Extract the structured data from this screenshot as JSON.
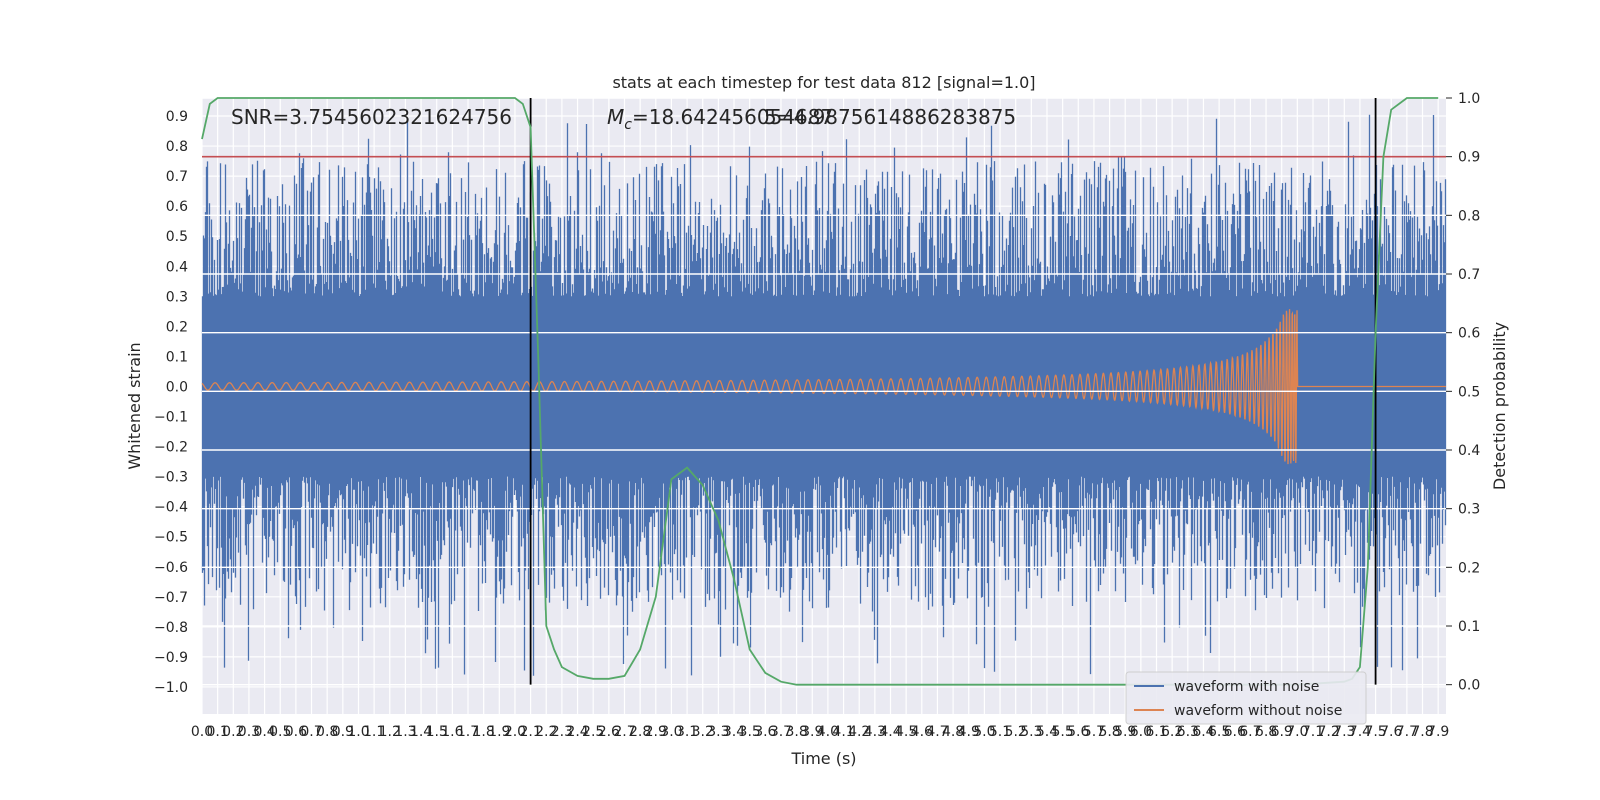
{
  "chart_data": {
    "type": "line",
    "title": "stats at each timestep for test data 812 [signal=1.0]",
    "xlabel": "Time (s)",
    "ylabel_left": "Whitened strain",
    "ylabel_right": "Detection probability",
    "annotations": {
      "snr": "SNR=3.7545602321624756",
      "mc_symbol": "M",
      "mc_sub": "c",
      "mc_value": "=18.642456054687",
      "mc_overlap": "5=4.9875614886283875"
    },
    "xlim": [
      0,
      7.95
    ],
    "ylim_left": [
      -1.09,
      0.96
    ],
    "ylim_right": [
      -0.05,
      1.0
    ],
    "x_ticks": [
      0.0,
      0.1,
      0.2,
      0.3,
      0.4,
      0.5,
      0.6,
      0.7,
      0.8,
      0.9,
      1.0,
      1.1,
      1.2,
      1.3,
      1.4,
      1.5,
      1.6,
      1.7,
      1.8,
      1.9,
      2.0,
      2.1,
      2.2,
      2.3,
      2.4,
      2.5,
      2.6,
      2.7,
      2.8,
      2.9,
      3.0,
      3.1,
      3.2,
      3.3,
      3.4,
      3.5,
      3.6,
      3.7,
      3.8,
      3.9,
      4.0,
      4.1,
      4.2,
      4.3,
      4.4,
      4.5,
      4.6,
      4.7,
      4.8,
      4.9,
      5.0,
      5.1,
      5.2,
      5.3,
      5.4,
      5.5,
      5.6,
      5.7,
      5.8,
      5.9,
      6.0,
      6.1,
      6.2,
      6.3,
      6.4,
      6.5,
      6.6,
      6.7,
      6.8,
      6.9,
      7.0,
      7.1,
      7.2,
      7.3,
      7.4,
      7.5,
      7.6,
      7.7,
      7.8,
      7.9
    ],
    "y_ticks_left": [
      0.9,
      0.8,
      0.7,
      0.6,
      0.5,
      0.4,
      0.3,
      0.2,
      0.1,
      0.0,
      -0.1,
      -0.2,
      -0.3,
      -0.4,
      -0.5,
      -0.6,
      -0.7,
      -0.8,
      -0.9,
      -1.0
    ],
    "y_ticks_right": [
      1.0,
      0.9,
      0.8,
      0.7,
      0.6,
      0.5,
      0.4,
      0.3,
      0.2,
      0.1,
      0.0
    ],
    "threshold_right": 0.9,
    "vertical_lines_x": [
      2.1,
      7.5
    ],
    "chirp_merger_x": 7.0,
    "series": [
      {
        "name": "waveform with noise",
        "color": "#4c72b0"
      },
      {
        "name": "waveform without noise",
        "color": "#dd8452"
      },
      {
        "name": "",
        "color": "#55a868",
        "x": [
          0,
          0.05,
          0.1,
          0.5,
          1.0,
          1.5,
          1.9,
          2.0,
          2.05,
          2.1,
          2.15,
          2.2,
          2.25,
          2.3,
          2.4,
          2.5,
          2.6,
          2.7,
          2.8,
          2.9,
          3.0,
          3.1,
          3.2,
          3.3,
          3.4,
          3.5,
          3.6,
          3.7,
          3.8,
          4.0,
          4.5,
          5.0,
          5.5,
          6.0,
          6.5,
          7.0,
          7.3,
          7.35,
          7.4,
          7.45,
          7.5,
          7.55,
          7.6,
          7.7,
          7.8,
          7.9
        ],
        "values": [
          0.93,
          0.99,
          1.0,
          1.0,
          1.0,
          1.0,
          1.0,
          1.0,
          0.99,
          0.95,
          0.55,
          0.1,
          0.06,
          0.03,
          0.015,
          0.01,
          0.01,
          0.015,
          0.06,
          0.15,
          0.35,
          0.37,
          0.34,
          0.28,
          0.18,
          0.06,
          0.02,
          0.005,
          0.0,
          0.0,
          0.0,
          0.0,
          0.0,
          0.0,
          0.0,
          0.0,
          0.005,
          0.01,
          0.03,
          0.2,
          0.6,
          0.9,
          0.98,
          1.0,
          1.0,
          1.0
        ]
      },
      {
        "name": "",
        "color": "#c44e52",
        "type": "threshold"
      }
    ],
    "legend_position": "lower right",
    "grid": true,
    "colors": {
      "background": "#eaeaf2",
      "grid": "#ffffff",
      "vline": "#000000"
    }
  }
}
